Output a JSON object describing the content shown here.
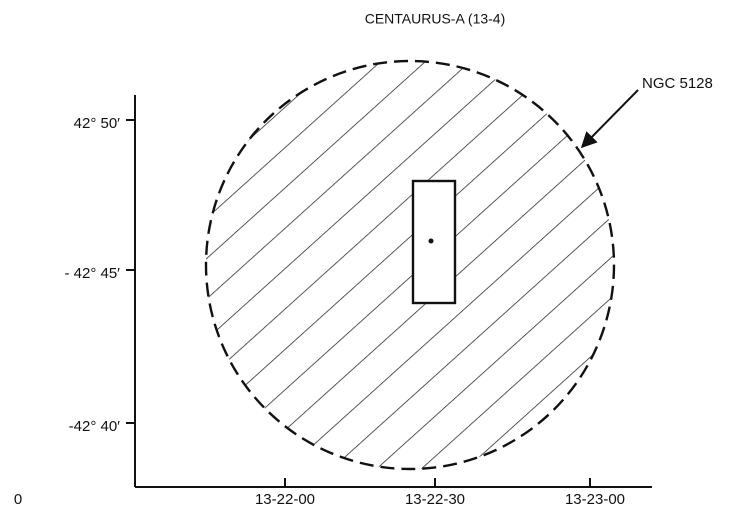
{
  "title": "CENTAURUS-A (13-4)",
  "y_axis": {
    "labels": [
      "42° 50′",
      "- 42° 45′",
      "-42° 40′"
    ]
  },
  "x_axis": {
    "labels": [
      "13-22-00",
      "13-22-30",
      "13-23-00"
    ]
  },
  "annotation": "NGC 5128",
  "origin_label": "0"
}
